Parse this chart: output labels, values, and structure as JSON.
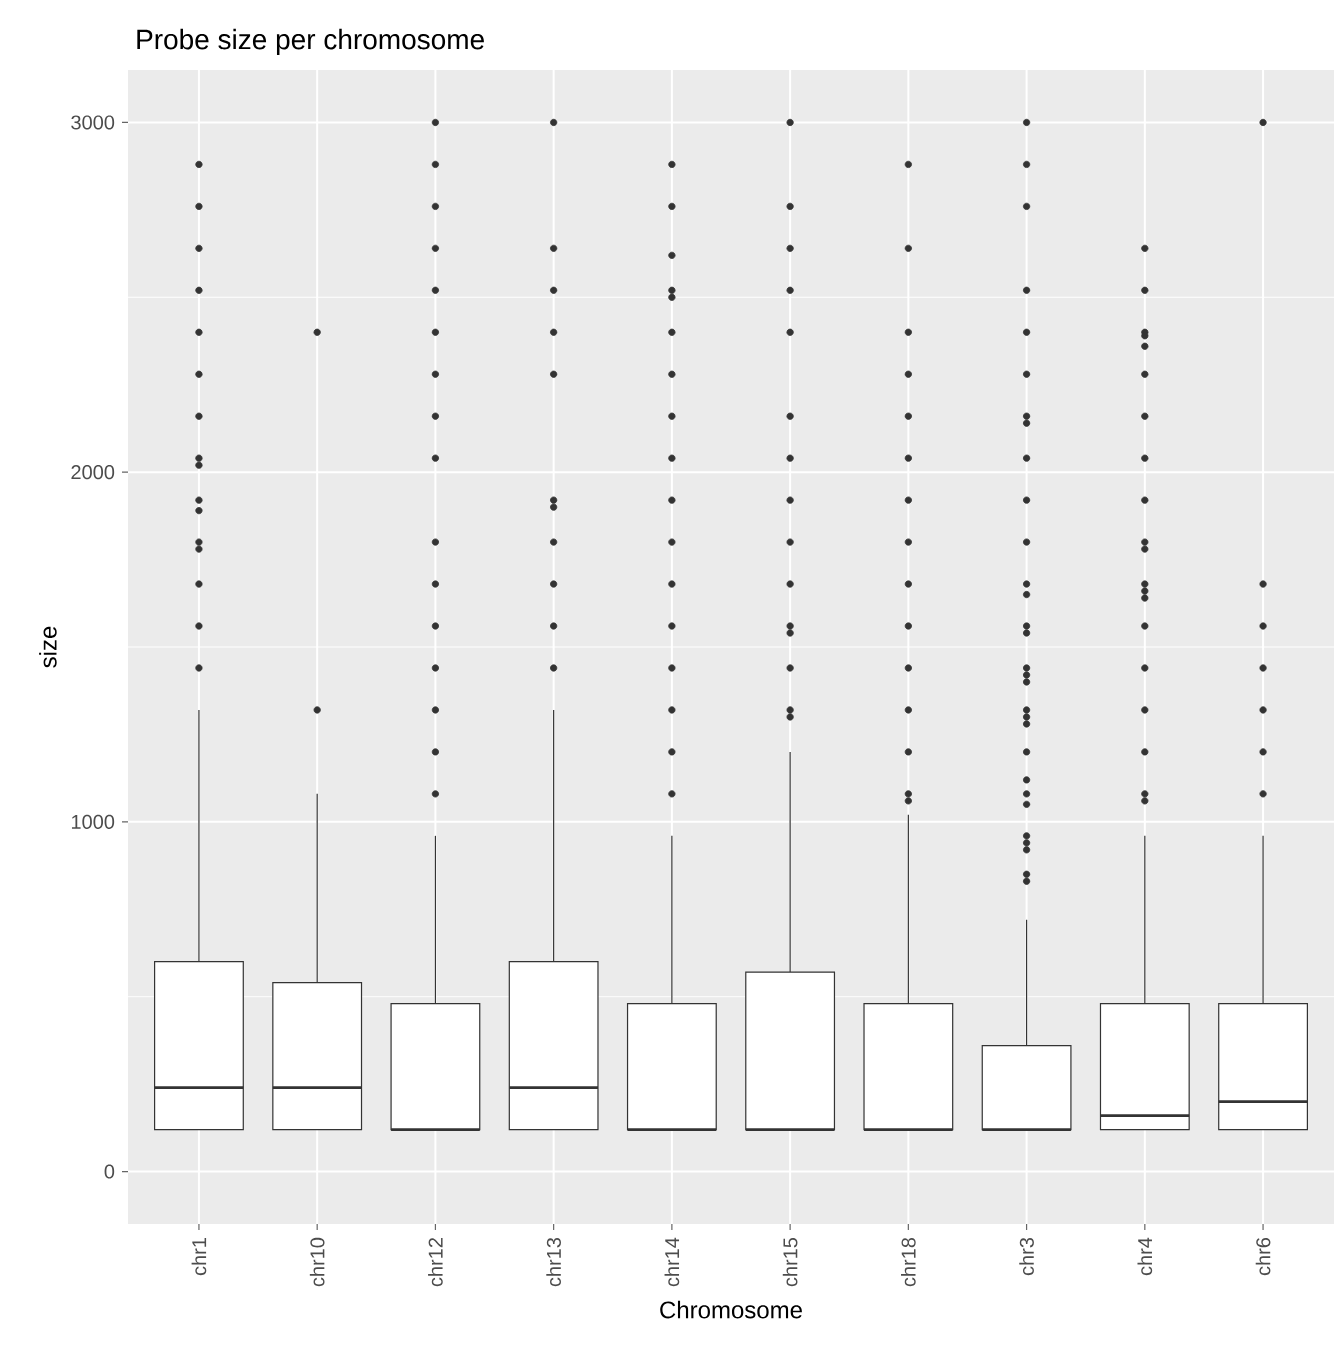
{
  "chart_data": {
    "type": "box",
    "title": "Probe size per chromosome",
    "xlabel": "Chromosome",
    "ylabel": "size",
    "categories": [
      "chr1",
      "chr10",
      "chr12",
      "chr13",
      "chr14",
      "chr15",
      "chr18",
      "chr3",
      "chr4",
      "chr6"
    ],
    "color": "#333333",
    "marker": "circle",
    "grid": true,
    "ylim": [
      -150,
      3150
    ],
    "yticks": [
      0,
      1000,
      2000,
      3000
    ],
    "boxes": [
      {
        "low": 120,
        "q1": 120,
        "median": 240,
        "q3": 600,
        "high": 1320,
        "outliers": [
          2880,
          2760,
          2640,
          2520,
          2400,
          2280,
          2160,
          2040,
          2020,
          1920,
          1890,
          1800,
          1780,
          1680,
          1560,
          1440
        ]
      },
      {
        "low": 120,
        "q1": 120,
        "median": 240,
        "q3": 540,
        "high": 1080,
        "outliers": [
          2400,
          1320
        ]
      },
      {
        "low": 120,
        "q1": 120,
        "median": 120,
        "q3": 480,
        "high": 960,
        "outliers": [
          3000,
          2880,
          2760,
          2640,
          2520,
          2400,
          2280,
          2160,
          2040,
          1800,
          1680,
          1560,
          1440,
          1320,
          1200,
          1080
        ]
      },
      {
        "low": 120,
        "q1": 120,
        "median": 240,
        "q3": 600,
        "high": 1320,
        "outliers": [
          3000,
          2640,
          2520,
          2400,
          2280,
          1920,
          1900,
          1800,
          1680,
          1560,
          1440
        ]
      },
      {
        "low": 120,
        "q1": 120,
        "median": 120,
        "q3": 480,
        "high": 960,
        "outliers": [
          2880,
          2760,
          2620,
          2520,
          2500,
          2400,
          2280,
          2160,
          2040,
          1920,
          1800,
          1680,
          1560,
          1440,
          1320,
          1200,
          1080
        ]
      },
      {
        "low": 120,
        "q1": 120,
        "median": 120,
        "q3": 570,
        "high": 1200,
        "outliers": [
          3000,
          2760,
          2640,
          2520,
          2400,
          2160,
          2040,
          1920,
          1800,
          1680,
          1560,
          1540,
          1440,
          1320,
          1300
        ]
      },
      {
        "low": 120,
        "q1": 120,
        "median": 120,
        "q3": 480,
        "high": 1020,
        "outliers": [
          2880,
          2640,
          2400,
          2280,
          2160,
          2040,
          1920,
          1800,
          1680,
          1560,
          1440,
          1320,
          1200,
          1080,
          1060
        ]
      },
      {
        "low": 120,
        "q1": 120,
        "median": 120,
        "q3": 360,
        "high": 720,
        "outliers": [
          3000,
          2880,
          2760,
          2520,
          2400,
          2280,
          2160,
          2140,
          2040,
          1920,
          1800,
          1680,
          1650,
          1560,
          1540,
          1440,
          1420,
          1400,
          1320,
          1300,
          1280,
          1200,
          1120,
          1080,
          1050,
          960,
          940,
          920,
          850,
          830
        ]
      },
      {
        "low": 120,
        "q1": 120,
        "median": 160,
        "q3": 480,
        "high": 960,
        "outliers": [
          2640,
          2520,
          2400,
          2390,
          2360,
          2280,
          2160,
          2040,
          1920,
          1800,
          1780,
          1680,
          1660,
          1640,
          1560,
          1440,
          1320,
          1200,
          1080,
          1060
        ]
      },
      {
        "low": 120,
        "q1": 120,
        "median": 200,
        "q3": 480,
        "high": 960,
        "outliers": [
          3000,
          1680,
          1560,
          1440,
          1320,
          1200,
          1080
        ]
      }
    ]
  }
}
